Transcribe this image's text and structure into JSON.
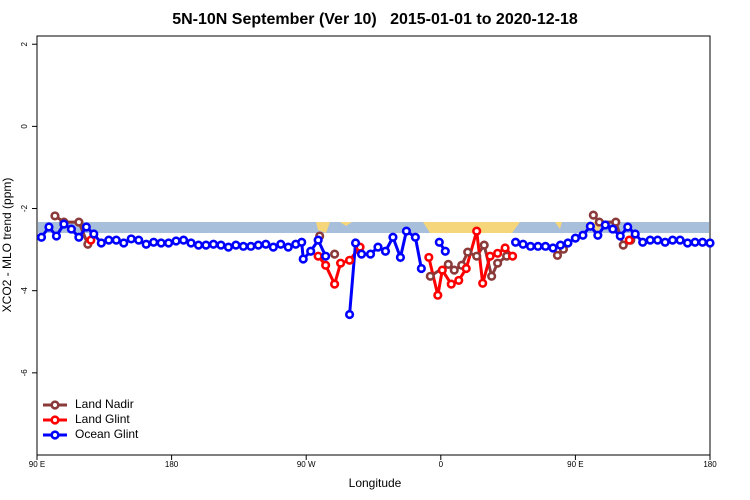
{
  "chart_data": {
    "type": "line",
    "title": "5N-10N September (Ver 10)   2015-01-01 to 2020-12-18",
    "x_label": "Longitude",
    "y_label": "XCO2 - MLO trend (ppm)",
    "xlim": [
      90,
      540
    ],
    "ylim": [
      -8,
      2.2
    ],
    "xticks": [
      {
        "value": 90,
        "label": "90 E"
      },
      180,
      {
        "value": 270,
        "label": "90 W"
      },
      {
        "value": 360,
        "label": "0"
      },
      {
        "value": 450,
        "label": "90 E"
      },
      180
    ],
    "yticks": [
      2,
      0,
      -2,
      -4,
      -6
    ],
    "legend": "bottom-left",
    "series": [
      {
        "name": "Land Nadir",
        "color": "#8b3a3a",
        "x": [
          102,
          108,
          118,
          124,
          null,
          279,
          null,
          289,
          null,
          353,
          365,
          369,
          374,
          378,
          384,
          389,
          394,
          398,
          404,
          null,
          438,
          442,
          null,
          462,
          466,
          477,
          482,
          487
        ],
        "values": [
          -2.18,
          -2.33,
          -2.33,
          -2.87,
          null,
          -2.67,
          null,
          -3.11,
          null,
          -3.65,
          -3.36,
          -3.5,
          -3.38,
          -3.06,
          -3.16,
          -2.89,
          -3.65,
          -3.33,
          -3.16,
          null,
          -3.14,
          -2.99,
          null,
          -2.16,
          -2.33,
          -2.33,
          -2.89,
          -2.77
        ]
      },
      {
        "name": "Land Glint",
        "color": "#ff0000",
        "x": [
          126,
          null,
          278,
          283,
          289,
          293,
          299,
          306,
          null,
          352,
          358,
          361,
          367,
          372,
          377,
          384,
          388,
          393,
          398,
          403,
          408,
          null,
          486
        ],
        "values": [
          -2.77,
          null,
          -3.16,
          -3.38,
          -3.84,
          -3.33,
          -3.26,
          -2.94,
          null,
          -3.19,
          -4.11,
          -3.5,
          -3.84,
          -3.75,
          -3.46,
          -2.55,
          -3.82,
          -3.16,
          -3.09,
          -2.96,
          -3.16,
          null,
          -2.77
        ]
      },
      {
        "name": "Ocean Glint",
        "color": "#0000ff",
        "x": [
          93,
          98,
          103,
          108,
          113,
          118,
          123,
          128,
          133,
          138,
          143,
          148,
          153,
          158,
          163,
          168,
          173,
          178,
          183,
          188,
          193,
          198,
          203,
          208,
          213,
          218,
          223,
          228,
          233,
          238,
          243,
          248,
          253,
          258,
          263,
          267,
          268,
          273,
          278,
          283,
          null,
          299,
          303,
          307,
          313,
          318,
          323,
          328,
          333,
          337,
          343,
          347,
          null,
          359,
          363,
          null,
          410,
          415,
          420,
          425,
          430,
          435,
          440,
          445,
          450,
          455,
          460,
          465,
          470,
          475,
          480,
          485,
          490,
          495,
          500,
          505,
          510,
          515,
          520,
          525,
          530,
          535,
          540
        ],
        "values": [
          -2.7,
          -2.45,
          -2.67,
          -2.38,
          -2.5,
          -2.7,
          -2.45,
          -2.62,
          -2.84,
          -2.77,
          -2.77,
          -2.84,
          -2.74,
          -2.77,
          -2.87,
          -2.82,
          -2.84,
          -2.84,
          -2.79,
          -2.77,
          -2.84,
          -2.89,
          -2.89,
          -2.87,
          -2.89,
          -2.94,
          -2.89,
          -2.92,
          -2.92,
          -2.89,
          -2.87,
          -2.94,
          -2.87,
          -2.94,
          -2.87,
          -2.82,
          -3.23,
          -3.04,
          -2.77,
          -3.16,
          null,
          -4.58,
          -2.84,
          -3.11,
          -3.11,
          -2.94,
          -3.04,
          -2.7,
          -3.19,
          -2.55,
          -2.7,
          -3.46,
          null,
          -2.82,
          -3.04,
          null,
          -2.82,
          -2.87,
          -2.92,
          -2.92,
          -2.92,
          -2.96,
          -2.89,
          -2.84,
          -2.72,
          -2.65,
          -2.43,
          -2.65,
          -2.4,
          -2.5,
          -2.67,
          -2.45,
          -2.62,
          -2.82,
          -2.77,
          -2.77,
          -2.82,
          -2.77,
          -2.77,
          -2.84,
          -2.82,
          -2.82,
          -2.84
        ]
      }
    ]
  }
}
